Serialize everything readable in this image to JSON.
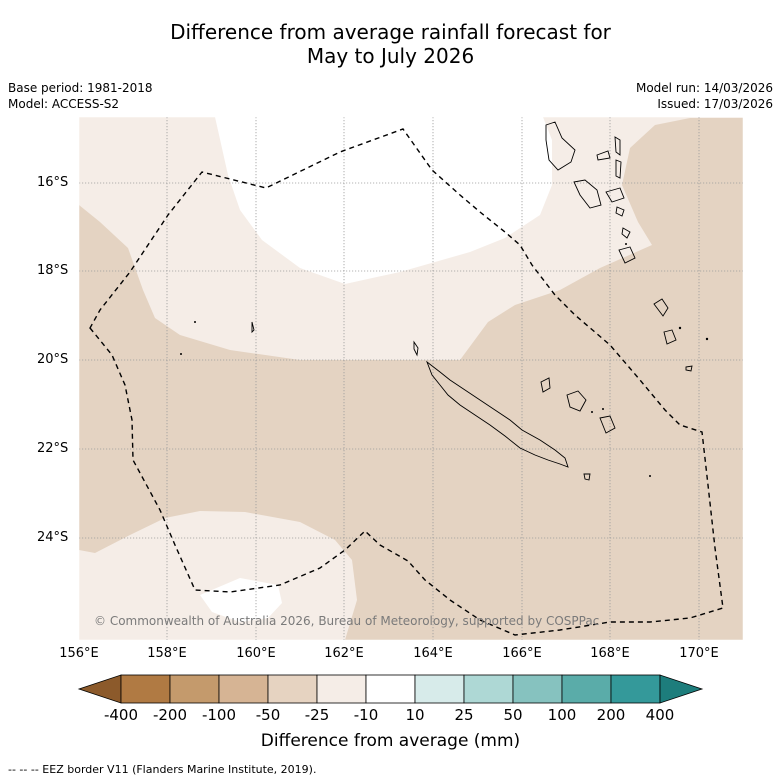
{
  "title_line1": "Difference from average rainfall forecast for",
  "title_line2": "May to July 2026",
  "base_period": "Base period: 1981-2018",
  "model": "Model: ACCESS-S2",
  "model_run": "Model run: 14/03/2026",
  "issued": "Issued: 17/03/2026",
  "lat_ticks": [
    "16°S",
    "18°S",
    "20°S",
    "22°S",
    "24°S"
  ],
  "lon_ticks": [
    "156°E",
    "158°E",
    "160°E",
    "162°E",
    "164°E",
    "166°E",
    "168°E",
    "170°E"
  ],
  "copyright": "© Commonwealth of Australia 2026, Bureau of Meteorology, supported by COSPPac",
  "colorbar": {
    "labels": [
      "-400",
      "-200",
      "-100",
      "-50",
      "-25",
      "-10",
      "10",
      "25",
      "50",
      "100",
      "200",
      "400"
    ],
    "colors": [
      "#8c5a2b",
      "#b07a43",
      "#c49a6c",
      "#d6b494",
      "#e6d3c1",
      "#f5ede7",
      "#ffffff",
      "#d7ebea",
      "#aed8d5",
      "#86c2bf",
      "#5aaca9",
      "#34999a",
      "#1d7d7c"
    ],
    "title": "Difference from average (mm)"
  },
  "map_colors": {
    "brown": "#e4d3c2",
    "light": "#f5ede7",
    "white": "#ffffff"
  },
  "footnote": "--  --  -- EEZ border V11 (Flanders Marine Institute, 2019)."
}
